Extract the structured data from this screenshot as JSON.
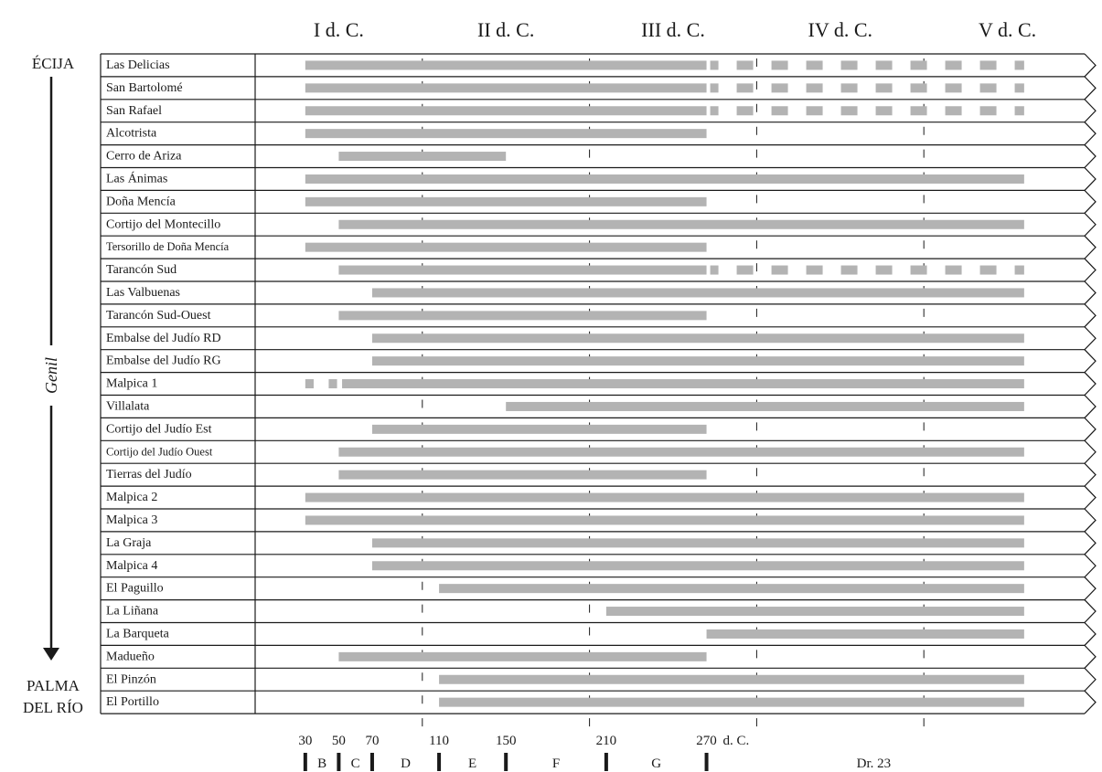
{
  "chart_data": {
    "type": "bar",
    "subtype": "timeline",
    "left_labels": {
      "top": "ÉCIJA",
      "river": "Genil",
      "bottom_line1": "PALMA",
      "bottom_line2": "DEL RÍO"
    },
    "centuries": [
      "I d. C.",
      "II d. C.",
      "III d. C.",
      "IV d. C.",
      "V d. C."
    ],
    "x_axis": {
      "ticks": [
        "30",
        "50",
        "70",
        "110",
        "150",
        "210",
        "270"
      ],
      "suffix": "d. C.",
      "phases": [
        "B",
        "C",
        "D",
        "E",
        "F",
        "G",
        "Dr. 23"
      ]
    },
    "x_range": [
      0,
      500
    ],
    "grid_years": [
      100,
      200,
      300,
      400
    ],
    "colors": {
      "bar": "#b3b3b3",
      "line": "#1a1a1a"
    },
    "sites": [
      {
        "name": "Las Delicias",
        "spans": [
          [
            30,
            270
          ]
        ],
        "dashed_from": 270
      },
      {
        "name": "San Bartolomé",
        "spans": [
          [
            30,
            270
          ]
        ],
        "dashed_from": 270
      },
      {
        "name": "San Rafael",
        "spans": [
          [
            30,
            270
          ]
        ],
        "dashed_from": 270
      },
      {
        "name": "Alcotrista",
        "spans": [
          [
            30,
            270
          ]
        ]
      },
      {
        "name": "Cerro de Ariza",
        "spans": [
          [
            50,
            150
          ]
        ]
      },
      {
        "name": "Las Ánimas",
        "spans": [
          [
            30,
            460
          ]
        ]
      },
      {
        "name": "Doña Mencía",
        "spans": [
          [
            30,
            270
          ]
        ]
      },
      {
        "name": "Cortijo del Montecillo",
        "spans": [
          [
            50,
            460
          ]
        ]
      },
      {
        "name": "Tersorillo de Doña Mencía",
        "spans": [
          [
            30,
            270
          ]
        ]
      },
      {
        "name": "Tarancón Sud",
        "spans": [
          [
            50,
            270
          ]
        ],
        "dashed_from": 270
      },
      {
        "name": "Las Valbuenas",
        "spans": [
          [
            70,
            460
          ]
        ]
      },
      {
        "name": "Tarancón Sud-Ouest",
        "spans": [
          [
            50,
            270
          ]
        ]
      },
      {
        "name": "Embalse del Judío RD",
        "spans": [
          [
            70,
            460
          ]
        ]
      },
      {
        "name": "Embalse del Judío RG",
        "spans": [
          [
            70,
            460
          ]
        ]
      },
      {
        "name": "Malpica 1",
        "spans": [
          [
            30,
            35
          ],
          [
            44,
            49
          ],
          [
            52,
            460
          ]
        ]
      },
      {
        "name": "Villalata",
        "spans": [
          [
            150,
            460
          ]
        ]
      },
      {
        "name": "Cortijo del Judío Est",
        "spans": [
          [
            70,
            270
          ]
        ]
      },
      {
        "name": "Cortijo del Judío Ouest",
        "spans": [
          [
            50,
            460
          ]
        ]
      },
      {
        "name": "Tierras del Judío",
        "spans": [
          [
            50,
            270
          ]
        ]
      },
      {
        "name": "Malpica 2",
        "spans": [
          [
            30,
            460
          ]
        ]
      },
      {
        "name": "Malpica 3",
        "spans": [
          [
            30,
            460
          ]
        ]
      },
      {
        "name": "La Graja",
        "spans": [
          [
            70,
            460
          ]
        ]
      },
      {
        "name": "Malpica 4",
        "spans": [
          [
            70,
            460
          ]
        ]
      },
      {
        "name": "El Paguillo",
        "spans": [
          [
            110,
            460
          ]
        ]
      },
      {
        "name": "La Liñana",
        "spans": [
          [
            210,
            460
          ]
        ]
      },
      {
        "name": "La Barqueta",
        "spans": [
          [
            270,
            460
          ]
        ]
      },
      {
        "name": "Madueño",
        "spans": [
          [
            50,
            270
          ]
        ]
      },
      {
        "name": "El Pinzón",
        "spans": [
          [
            110,
            460
          ]
        ]
      },
      {
        "name": "El Portillo",
        "spans": [
          [
            110,
            460
          ]
        ]
      }
    ]
  }
}
